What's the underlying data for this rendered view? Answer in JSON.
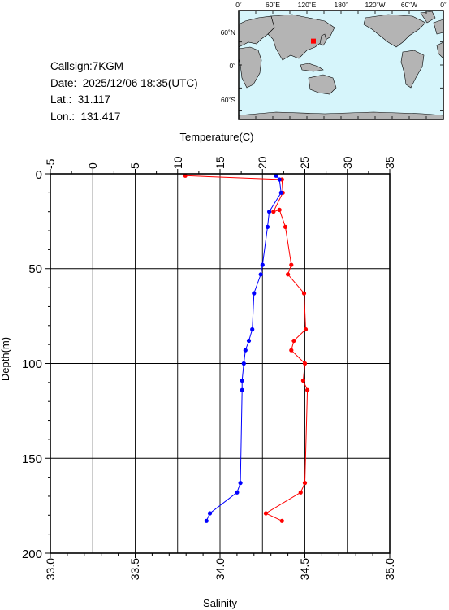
{
  "station": {
    "callsign_line": "Callsign:7KGM",
    "date_line": "Date:  2025/12/06 18:35(UTC)",
    "lat_line": "Lat.:  31.117",
    "lon_line": "Lon.:  131.417"
  },
  "map": {
    "lon_ticks": [
      "0˚",
      "60˚E",
      "120˚E",
      "180˚",
      "120˚W",
      "60˚W",
      "0˚"
    ],
    "lat_ticks": [
      "60˚N",
      "0˚",
      "60˚S"
    ],
    "ocean_color": "#d6f5fb",
    "land_color": "#b4b4b4",
    "marker_color": "#ff0000",
    "marker_lat": 31.117,
    "marker_lon": 131.417
  },
  "chart_data": {
    "type": "line",
    "ylabel": "Depth(m)",
    "y_inverted": true,
    "ylim": [
      0,
      200
    ],
    "yticks": [
      "0",
      "50",
      "100",
      "150",
      "200"
    ],
    "x_top": {
      "label": "Temperature(C)",
      "range": [
        -5,
        35
      ],
      "ticks": [
        "-5",
        "0",
        "5",
        "10",
        "15",
        "20",
        "25",
        "30",
        "35"
      ]
    },
    "x_bottom": {
      "label": "Salinity",
      "range": [
        33.0,
        35.0
      ],
      "ticks": [
        "33.0",
        "33.5",
        "34.0",
        "34.5",
        "35.0"
      ]
    },
    "grid": true,
    "series": [
      {
        "quantity": "temperature",
        "axis": "top",
        "color": "#ff0000",
        "points": [
          {
            "depth": 1,
            "value": 10.9
          },
          {
            "depth": 3,
            "value": 22.3
          },
          {
            "depth": 10,
            "value": 22.4
          },
          {
            "depth": 20,
            "value": 21.3
          },
          {
            "depth": 19,
            "value": 22.0
          },
          {
            "depth": 28,
            "value": 22.7
          },
          {
            "depth": 48,
            "value": 23.4
          },
          {
            "depth": 53,
            "value": 23.0
          },
          {
            "depth": 63,
            "value": 24.9
          },
          {
            "depth": 82,
            "value": 25.1
          },
          {
            "depth": 88,
            "value": 23.7
          },
          {
            "depth": 93,
            "value": 23.4
          },
          {
            "depth": 100,
            "value": 25.0
          },
          {
            "depth": 109,
            "value": 24.8
          },
          {
            "depth": 114,
            "value": 25.3
          },
          {
            "depth": 163,
            "value": 25.0
          },
          {
            "depth": 168,
            "value": 24.5
          },
          {
            "depth": 179,
            "value": 20.4
          },
          {
            "depth": 183,
            "value": 22.3
          }
        ]
      },
      {
        "quantity": "salinity",
        "axis": "bottom",
        "color": "#0000ff",
        "points": [
          {
            "depth": 1,
            "value": 34.33
          },
          {
            "depth": 3,
            "value": 34.35
          },
          {
            "depth": 10,
            "value": 34.36
          },
          {
            "depth": 20,
            "value": 34.29
          },
          {
            "depth": 28,
            "value": 34.28
          },
          {
            "depth": 48,
            "value": 34.25
          },
          {
            "depth": 53,
            "value": 34.24
          },
          {
            "depth": 63,
            "value": 34.2
          },
          {
            "depth": 82,
            "value": 34.19
          },
          {
            "depth": 88,
            "value": 34.17
          },
          {
            "depth": 93,
            "value": 34.15
          },
          {
            "depth": 100,
            "value": 34.14
          },
          {
            "depth": 109,
            "value": 34.13
          },
          {
            "depth": 114,
            "value": 34.13
          },
          {
            "depth": 163,
            "value": 34.12
          },
          {
            "depth": 168,
            "value": 34.1
          },
          {
            "depth": 179,
            "value": 33.94
          },
          {
            "depth": 183,
            "value": 33.92
          }
        ]
      }
    ]
  }
}
